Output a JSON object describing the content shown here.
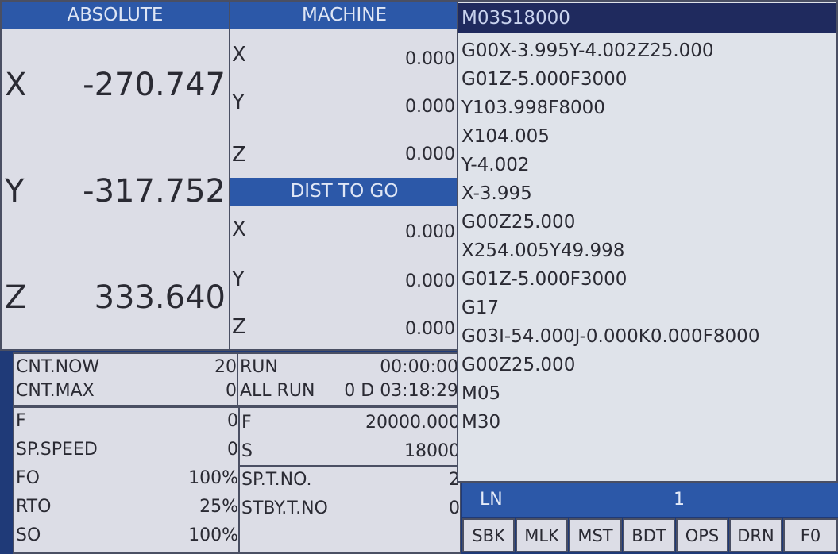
{
  "absolute": {
    "title": "ABSOLUTE",
    "axes": [
      {
        "axis": "X",
        "value": "-270.747"
      },
      {
        "axis": "Y",
        "value": "-317.752"
      },
      {
        "axis": "Z",
        "value": "333.640"
      }
    ]
  },
  "machine": {
    "title": "MACHINE",
    "axes": [
      {
        "axis": "X",
        "value": "0.000"
      },
      {
        "axis": "Y",
        "value": "0.000"
      },
      {
        "axis": "Z",
        "value": "0.000"
      }
    ]
  },
  "dist_to_go": {
    "title": "DIST TO GO",
    "axes": [
      {
        "axis": "X",
        "value": "0.000"
      },
      {
        "axis": "Y",
        "value": "0.000"
      },
      {
        "axis": "Z",
        "value": "0.000"
      }
    ]
  },
  "counters": [
    {
      "label": "CNT.NOW",
      "value": "20"
    },
    {
      "label": "CNT.MAX",
      "value": "0"
    }
  ],
  "run": [
    {
      "label": "RUN",
      "value": "00:00:00"
    },
    {
      "label": "ALL RUN",
      "value": "0 D 03:18:29"
    }
  ],
  "feed_left": [
    {
      "label": "F",
      "value": "0"
    },
    {
      "label": "SP.SPEED",
      "value": "0"
    },
    {
      "label": "FO",
      "value": "100%"
    },
    {
      "label": "RTO",
      "value": "25%"
    },
    {
      "label": "SO",
      "value": "100%"
    }
  ],
  "feed_right": [
    {
      "label": "F",
      "value": "20000.000"
    },
    {
      "label": "S",
      "value": "18000"
    }
  ],
  "tools": [
    {
      "label": "SP.T.NO.",
      "value": "2"
    },
    {
      "label": "STBY.T.NO",
      "value": "0"
    }
  ],
  "program": {
    "current": "M03S18000",
    "lines": [
      "G00X-3.995Y-4.002Z25.000",
      "G01Z-5.000F3000",
      "Y103.998F8000",
      "X104.005",
      "Y-4.002",
      "X-3.995",
      "G00Z25.000",
      "X254.005Y49.998",
      "G01Z-5.000F3000",
      "G17",
      "G03I-54.000J-0.000K0.000F8000",
      "G00Z25.000",
      "M05",
      "M30"
    ]
  },
  "line_number": {
    "label": "LN",
    "value": "1"
  },
  "modes": [
    "SBK",
    "MLK",
    "MST",
    "BDT",
    "OPS",
    "DRN",
    "F0"
  ],
  "colors": {
    "header_blue": "#2c58a8",
    "current_line_navy": "#1f2a5e",
    "panel": "#dcdde6"
  }
}
